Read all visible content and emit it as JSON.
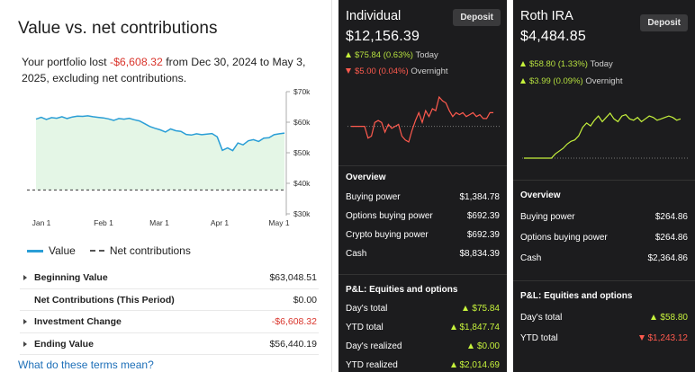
{
  "value_panel": {
    "title": "Value vs. net contributions",
    "summary_prefix": "Your portfolio lost ",
    "summary_amount": "-$6,608.32",
    "summary_suffix": " from Dec 30, 2024 to May 3, 2025, excluding net contributions.",
    "legend_value": "Value",
    "legend_net": "Net contributions",
    "rows": [
      {
        "label": "Beginning Value",
        "value": "$63,048.51",
        "expandable": true,
        "negative": false
      },
      {
        "label": "Net Contributions (This Period)",
        "value": "$0.00",
        "expandable": false,
        "negative": false
      },
      {
        "label": "Investment Change",
        "value": "-$6,608.32",
        "expandable": true,
        "negative": true
      },
      {
        "label": "Ending Value",
        "value": "$56,440.19",
        "expandable": true,
        "negative": false
      }
    ],
    "terms_link": "What do these terms mean?"
  },
  "chart_data": {
    "type": "area",
    "title": "",
    "x_ticks": [
      "Jan 1",
      "Feb 1",
      "Mar 1",
      "Apr 1",
      "May 1"
    ],
    "y_ticks": [
      "$70k",
      "$60k",
      "$50k",
      "$40k",
      "$30k"
    ],
    "ylim": [
      30000,
      70000
    ],
    "grid": false,
    "series": [
      {
        "name": "Value",
        "color": "#2a9ed6",
        "values": [
          61000,
          61600,
          60900,
          61500,
          61300,
          61800,
          61200,
          61700,
          62000,
          61900,
          62100,
          61800,
          61600,
          61400,
          61100,
          60600,
          61200,
          61000,
          61300,
          60800,
          60400,
          59500,
          58600,
          58000,
          57500,
          56800,
          57800,
          57200,
          57000,
          56000,
          55800,
          56200,
          55900,
          56100,
          56300,
          55200,
          50800,
          51600,
          50700,
          53200,
          52600,
          53900,
          54300,
          53700,
          54800,
          54900,
          55900,
          56200,
          56440
        ]
      },
      {
        "name": "Net contributions",
        "color": "#555555",
        "values": [
          37800,
          37800
        ]
      }
    ]
  },
  "accounts": [
    {
      "name": "Individual",
      "value": "$12,156.39",
      "deposit_label": "Deposit",
      "today": "$75.84 (0.63%)",
      "today_label": "Today",
      "today_dir": "up",
      "overnight": "$5.00 (0.04%)",
      "overnight_label": "Overnight",
      "overnight_dir": "down",
      "line_color": "#ff5a4e",
      "mini_values": [
        12080,
        12080,
        12080,
        12080,
        12080,
        12020,
        12030,
        12100,
        12110,
        12100,
        12050,
        12090,
        12070,
        12080,
        12090,
        12030,
        12010,
        12000,
        12060,
        12110,
        12150,
        12100,
        12160,
        12130,
        12170,
        12160,
        12230,
        12210,
        12200,
        12160,
        12130,
        12150,
        12140,
        12150,
        12130,
        12140,
        12150,
        12130,
        12140,
        12120,
        12120,
        12150,
        12150
      ],
      "overview_title": "Overview",
      "overview": [
        {
          "label": "Buying power",
          "value": "$1,384.78"
        },
        {
          "label": "Options buying power",
          "value": "$692.39"
        },
        {
          "label": "Crypto buying power",
          "value": "$692.39"
        },
        {
          "label": "Cash",
          "value": "$8,834.39"
        }
      ],
      "pl_title": "P&L: Equities and options",
      "pl": [
        {
          "label": "Day's total",
          "value": "$75.84",
          "dir": "up"
        },
        {
          "label": "YTD total",
          "value": "$1,847.74",
          "dir": "up"
        },
        {
          "label": "Day's realized",
          "value": "$0.00",
          "dir": "up"
        },
        {
          "label": "YTD realized",
          "value": "$2,014.69",
          "dir": "up"
        }
      ]
    },
    {
      "name": "Roth IRA",
      "value": "$4,484.85",
      "deposit_label": "Deposit",
      "today": "$58.80 (1.33%)",
      "today_label": "Today",
      "today_dir": "up",
      "overnight": "$3.99 (0.09%)",
      "overnight_label": "Overnight",
      "overnight_dir": "up",
      "line_color": "#c6f23c",
      "mini_values": [
        4426,
        4426,
        4426,
        4426,
        4426,
        4426,
        4426,
        4426,
        4432,
        4436,
        4440,
        4446,
        4450,
        4452,
        4458,
        4470,
        4476,
        4472,
        4480,
        4486,
        4478,
        4484,
        4490,
        4482,
        4478,
        4486,
        4488,
        4482,
        4480,
        4484,
        4478,
        4482,
        4486,
        4484,
        4480,
        4482,
        4484,
        4486,
        4484,
        4480,
        4482
      ],
      "overview_title": "Overview",
      "overview": [
        {
          "label": "Buying power",
          "value": "$264.86"
        },
        {
          "label": "Options buying power",
          "value": "$264.86"
        },
        {
          "label": "Cash",
          "value": "$2,364.86"
        }
      ],
      "pl_title": "P&L: Equities and options",
      "pl": [
        {
          "label": "Day's total",
          "value": "$58.80",
          "dir": "up"
        },
        {
          "label": "YTD total",
          "value": "$1,243.12",
          "dir": "down"
        }
      ]
    }
  ]
}
